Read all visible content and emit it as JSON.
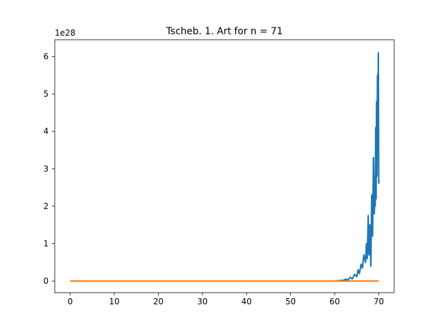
{
  "chart_data": {
    "type": "line",
    "title": "Tscheb. 1. Art for n = 71",
    "xlabel": "",
    "ylabel": "",
    "y_offset_label": "1e28",
    "xlim": [
      -3.5,
      73.5
    ],
    "ylim": [
      -0.31,
      6.45
    ],
    "x_ticks": [
      0,
      10,
      20,
      30,
      40,
      50,
      60,
      70
    ],
    "y_ticks": [
      0,
      1,
      2,
      3,
      4,
      5,
      6
    ],
    "grid": false,
    "series": [
      {
        "color": "#1f77b4",
        "x": [
          0,
          10,
          20,
          30,
          40,
          50,
          58,
          60,
          61,
          62,
          62.5,
          63,
          63.5,
          64,
          64.5,
          65,
          65.3,
          65.6,
          66,
          66.3,
          66.6,
          67,
          67.2,
          67.4,
          67.6,
          67.8,
          68,
          68.2,
          68.4,
          68.6,
          68.8,
          69,
          69.1,
          69.2,
          69.3,
          69.4,
          69.5,
          69.6,
          69.7,
          69.8,
          69.9,
          70
        ],
        "values": [
          0,
          0,
          0,
          0,
          0,
          0,
          0,
          0,
          0.01,
          0.02,
          0.05,
          0.03,
          0.1,
          0.06,
          0.18,
          0.12,
          0.3,
          0.2,
          0.45,
          0.35,
          0.7,
          0.5,
          1.0,
          0.6,
          1.75,
          0.7,
          1.5,
          0.4,
          2.3,
          1.2,
          3.3,
          1.8,
          2.8,
          2.0,
          4.1,
          2.2,
          4.8,
          2.8,
          5.5,
          3.3,
          6.1,
          2.6
        ]
      },
      {
        "color": "#ff7f0e",
        "x": [
          0,
          70
        ],
        "values": [
          0,
          0
        ]
      }
    ]
  }
}
